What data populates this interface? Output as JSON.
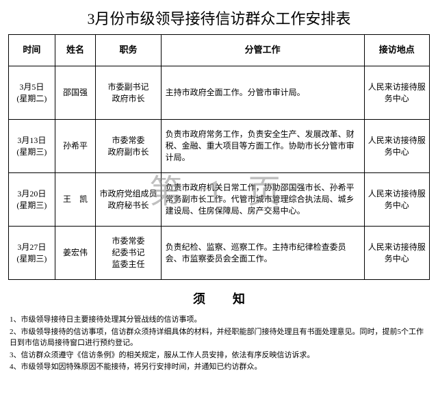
{
  "title": "3月份市级领导接待信访群众工作安排表",
  "watermark": "第 1 页",
  "columns": {
    "widths": [
      64,
      56,
      90,
      280,
      90
    ],
    "headers": [
      "时间",
      "姓名",
      "职务",
      "分管工作",
      "接访地点"
    ]
  },
  "rows": [
    {
      "time": "3月5日\n(星期二)",
      "name": "邵国强",
      "position": "市委副书记\n政府市长",
      "duty": "主持市政府全面工作。分管市审计局。",
      "location": "人民来访接待服\n务中心"
    },
    {
      "time": "3月13日\n(星期三)",
      "name": "孙希平",
      "position": "市委常委\n政府副市长",
      "duty": "负责市政府常务工作，负责安全生产、发展改革、财税、金融、重大项目等方面工作。协助市长分管市审计局。",
      "location": "人民来访接待服\n务中心"
    },
    {
      "time": "3月20日\n(星期三)",
      "name": "王　凯",
      "position": "市政府党组成员\n政府秘书长",
      "duty": "负责市政府机关日常工作，协助邵国强市长、孙希平常务副市长工作。代管市城市管理综合执法局、城乡建设局、住房保障局、房产交易中心。",
      "location": "人民来访接待服\n务中心"
    },
    {
      "time": "3月27日\n(星期三)",
      "name": "姜宏伟",
      "position": "市委常委\n纪委书记\n监委主任",
      "duty": "负责纪检、监察、巡察工作。主持市纪律检查委员会、市监察委员会全面工作。",
      "location": "人民来访接待服\n务中心"
    }
  ],
  "notice_title": "须知",
  "notes": [
    "1、市级领导接待日主要接待处理其分管战线的信访事项。",
    "2、市级领导接待的信访事项，信访群众须持详细具体的材料，并经职能部门接待处理且有书面处理意见。同时，提前5个工作日到市信访局接待窗口进行预约登记。",
    "3、信访群众须遵守《信访条例》的相关规定，服从工作人员安排，依法有序反映信访诉求。",
    "4、市级领导如因特殊原因不能接待，将另行安排时间，并通知已约访群众。"
  ]
}
